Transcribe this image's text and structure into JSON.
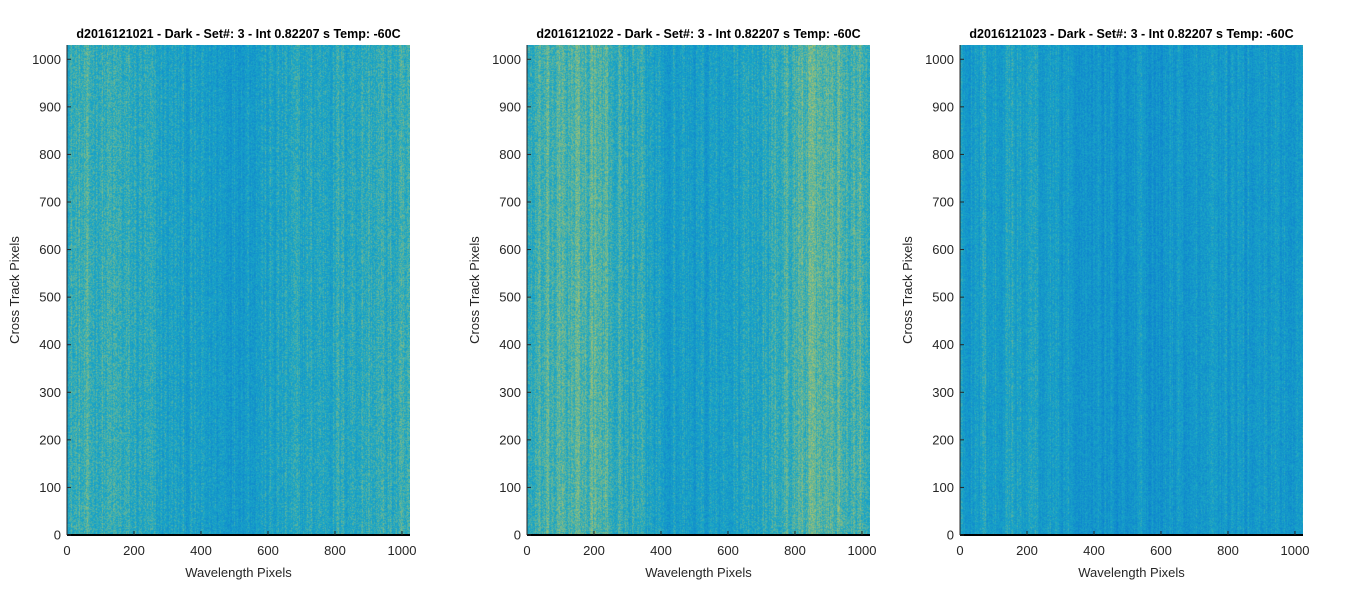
{
  "colors": {
    "low": "#0a78d2",
    "mid": "#1aa6c6",
    "high": "#c9c95a",
    "axis": "#262626",
    "background": "#ffffff"
  },
  "chart_data": [
    {
      "type": "heatmap",
      "title": "d2016121021 - Dark - Set#: 3 - Int 0.82207 s Temp: -60C",
      "xlabel": "Wavelength Pixels",
      "ylabel": "Cross Track Pixels",
      "xlim": [
        0,
        1024
      ],
      "ylim": [
        0,
        1030
      ],
      "xticks": [
        0,
        200,
        400,
        600,
        800,
        1000
      ],
      "yticks": [
        0,
        100,
        200,
        300,
        400,
        500,
        600,
        700,
        800,
        900,
        1000
      ],
      "colormap": "parula",
      "column_profile": {
        "x": [
          0,
          100,
          200,
          300,
          400,
          500,
          600,
          700,
          800,
          900,
          1000,
          1024
        ],
        "level": [
          0.56,
          0.58,
          0.52,
          0.45,
          0.4,
          0.4,
          0.44,
          0.48,
          0.52,
          0.55,
          0.54,
          0.54
        ]
      },
      "noise": 0.16
    },
    {
      "type": "heatmap",
      "title": "d2016121022 - Dark - Set#: 3 - Int 0.82207 s Temp: -60C",
      "xlabel": "Wavelength Pixels",
      "ylabel": "Cross Track Pixels",
      "xlim": [
        0,
        1024
      ],
      "ylim": [
        0,
        1030
      ],
      "xticks": [
        0,
        200,
        400,
        600,
        800,
        1000
      ],
      "yticks": [
        0,
        100,
        200,
        300,
        400,
        500,
        600,
        700,
        800,
        900,
        1000
      ],
      "colormap": "parula",
      "column_profile": {
        "x": [
          0,
          100,
          200,
          300,
          400,
          500,
          600,
          700,
          800,
          900,
          1000,
          1024
        ],
        "level": [
          0.54,
          0.64,
          0.66,
          0.54,
          0.44,
          0.4,
          0.42,
          0.5,
          0.64,
          0.68,
          0.64,
          0.62
        ]
      },
      "noise": 0.16
    },
    {
      "type": "heatmap",
      "title": "d2016121023 - Dark - Set#: 3 - Int 0.82207 s Temp: -60C",
      "xlabel": "Wavelength Pixels",
      "ylabel": "Cross Track Pixels",
      "xlim": [
        0,
        1024
      ],
      "ylim": [
        0,
        1030
      ],
      "xticks": [
        0,
        200,
        400,
        600,
        800,
        1000
      ],
      "yticks": [
        0,
        100,
        200,
        300,
        400,
        500,
        600,
        700,
        800,
        900,
        1000
      ],
      "colormap": "parula",
      "column_profile": {
        "x": [
          0,
          100,
          200,
          300,
          400,
          500,
          600,
          700,
          800,
          900,
          1000,
          1024
        ],
        "level": [
          0.4,
          0.44,
          0.46,
          0.38,
          0.34,
          0.32,
          0.33,
          0.34,
          0.34,
          0.36,
          0.38,
          0.38
        ]
      },
      "noise": 0.15
    }
  ]
}
